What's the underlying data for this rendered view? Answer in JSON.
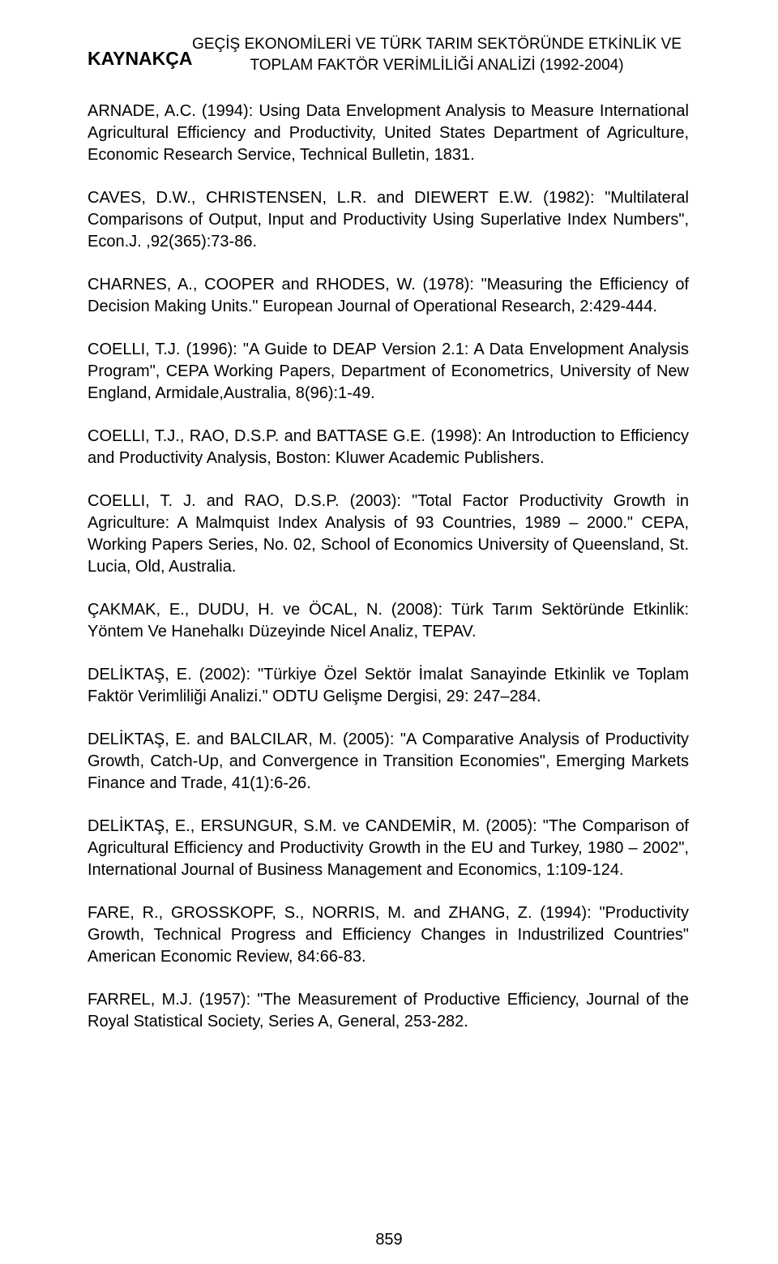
{
  "header": {
    "line1": "GEÇİŞ EKONOMİLERİ VE TÜRK TARIM SEKTÖRÜNDE ETKİNLİK VE",
    "line2": "TOPLAM FAKTÖR VERİMLİLİĞİ ANALİZİ (1992-2004)"
  },
  "section_title": "KAYNAKÇA",
  "references": [
    "ARNADE, A.C. (1994): Using Data Envelopment Analysis to Measure International Agricultural Efficiency and Productivity, United States Department of Agriculture, Economic Research Service, Technical Bulletin, 1831.",
    "CAVES, D.W., CHRISTENSEN, L.R. and DIEWERT E.W. (1982): \"Multilateral Comparisons of Output, Input and Productivity Using Superlative Index Numbers\", Econ.J. ,92(365):73-86.",
    "CHARNES, A., COOPER and RHODES, W. (1978): \"Measuring the Efficiency of Decision Making Units.\" European Journal of Operational Research, 2:429-444.",
    "COELLI, T.J. (1996): \"A Guide to DEAP Version 2.1: A Data Envelopment Analysis Program\", CEPA Working Papers, Department of Econometrics, University of New England, Armidale,Australia, 8(96):1-49.",
    "COELLI, T.J., RAO, D.S.P. and BATTASE G.E. (1998): An Introduction to Efficiency and Productivity Analysis, Boston: Kluwer Academic Publishers.",
    "COELLI, T. J. and RAO, D.S.P. (2003): \"Total Factor Productivity Growth in Agriculture: A Malmquist Index Analysis of 93 Countries, 1989 – 2000.\" CEPA, Working Papers Series, No. 02, School of Economics University of Queensland, St. Lucia, Old, Australia.",
    "ÇAKMAK, E., DUDU, H. ve ÖCAL, N. (2008): Türk Tarım Sektöründe Etkinlik: Yöntem Ve Hanehalkı Düzeyinde Nicel Analiz, TEPAV.",
    "DELİKTAŞ, E. (2002): \"Türkiye Özel Sektör İmalat Sanayinde Etkinlik ve Toplam Faktör Verimliliği Analizi.\" ODTU Gelişme Dergisi, 29: 247–284.",
    "DELİKTAŞ, E. and BALCILAR, M. (2005): \"A Comparative Analysis of Productivity Growth, Catch-Up, and Convergence in Transition Economies\", Emerging Markets Finance and Trade, 41(1):6-26.",
    "DELİKTAŞ, E., ERSUNGUR, S.M. ve CANDEMİR, M. (2005): \"The Comparison of Agricultural Efficiency and Productivity Growth in the EU and Turkey, 1980 – 2002\", International Journal of Business Management and Economics, 1:109-124.",
    "FARE, R., GROSSKOPF, S., NORRIS, M. and ZHANG, Z. (1994): \"Productivity Growth, Technical Progress and Efficiency Changes in Industrilized Countries\" American Economic Review, 84:66-83.",
    "FARREL, M.J. (1957): \"The Measurement of Productive Efficiency, Journal of the Royal Statistical Society, Series A, General, 253-282."
  ],
  "page_number": "859"
}
